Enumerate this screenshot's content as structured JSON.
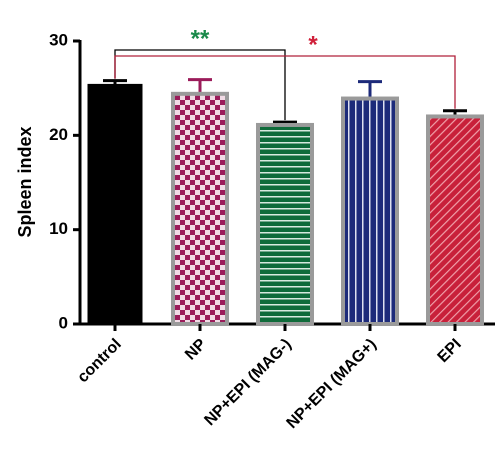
{
  "chart_data": {
    "type": "bar",
    "y_label": "Spleen index",
    "categories": [
      "control",
      "NP",
      "NP+EPI (MAG-)",
      "NP+EPI (MAG+)",
      "EPI"
    ],
    "values": [
      25.4,
      24.4,
      21.1,
      23.9,
      22.0
    ],
    "errors": [
      0.4,
      1.5,
      0.3,
      1.8,
      0.6
    ],
    "patterns": [
      "solid",
      "checker",
      "hstripe",
      "vstripe",
      "diag"
    ],
    "colors": [
      "#000000",
      "#9b1b5a",
      "#0f6b3a",
      "#1c2a7a",
      "#c8203a"
    ],
    "error_colors": [
      "#000000",
      "#9b1b5a",
      "#000000",
      "#1c2a7a",
      "#000000"
    ],
    "ylim": [
      0,
      30
    ],
    "yticks": [
      0,
      10,
      20,
      30
    ],
    "annotations": [
      {
        "text": "**",
        "color": "#1a8a4a",
        "line_color": "#000000",
        "from": 0,
        "to": 2
      },
      {
        "text": "*",
        "color": "#d0203a",
        "line_color": "#b0203a",
        "from": 0,
        "to": 4
      }
    ]
  }
}
